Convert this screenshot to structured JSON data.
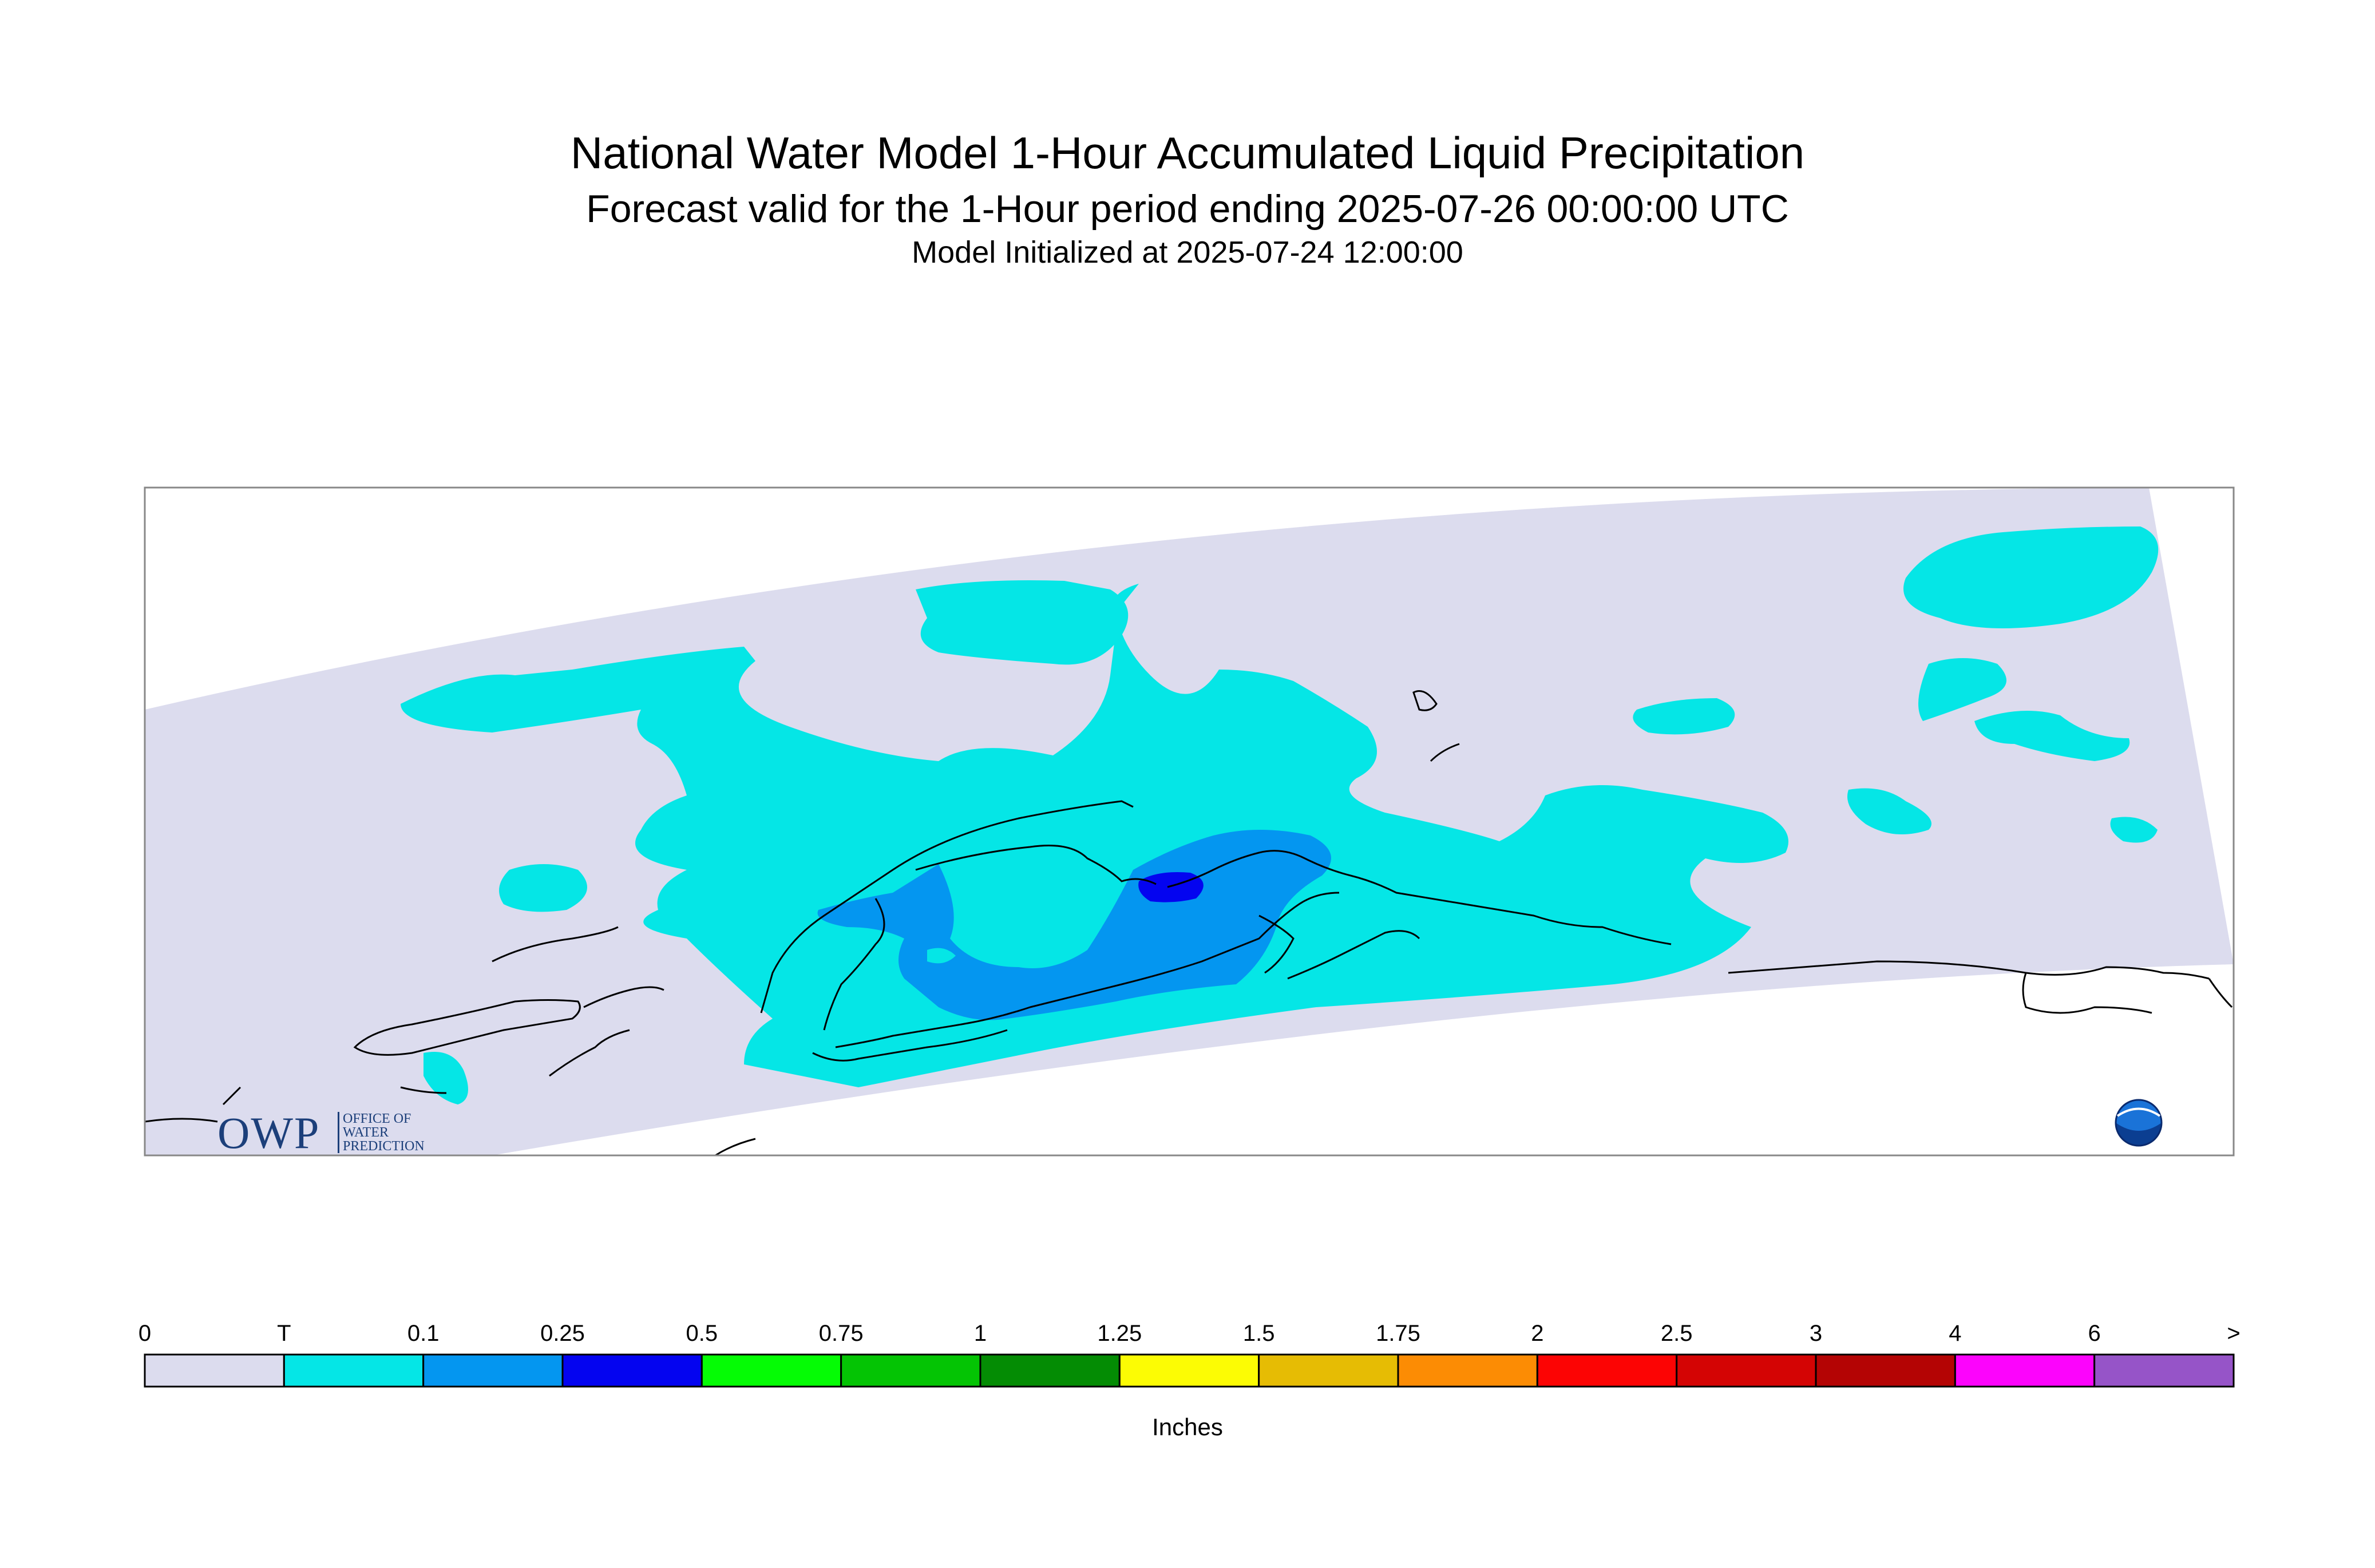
{
  "header": {
    "title": "National Water Model 1-Hour Accumulated Liquid Precipitation",
    "subtitle": "Forecast valid for the 1-Hour period ending 2025-07-26 00:00:00 UTC",
    "init": "Model Initialized at 2025-07-24 12:00:00"
  },
  "legend": {
    "units": "Inches",
    "labels": [
      "0",
      "T",
      "0.1",
      "0.25",
      "0.5",
      "0.75",
      "1",
      "1.25",
      "1.5",
      "1.75",
      "2",
      "2.5",
      "3",
      "4",
      "6",
      ">"
    ],
    "colors": [
      "#dcdcee",
      "#05e6e6",
      "#0496f0",
      "#0404f0",
      "#05fc05",
      "#04c404",
      "#048c04",
      "#fcfc04",
      "#e6bc04",
      "#fc8c04",
      "#fc0404",
      "#d40404",
      "#b40404",
      "#fc04fc",
      "#9654c8"
    ]
  },
  "map": {
    "region": "Alaska",
    "palette": {
      "domain": "#dcdcee",
      "trace": "#05e6e6",
      "light": "#0496f0",
      "medium": "#0404f0",
      "coast": "#000000"
    }
  },
  "logos": {
    "owp": "OWP",
    "owp_lines": [
      "OFFICE OF",
      "WATER",
      "PREDICTION"
    ],
    "noaa": "NOAA"
  }
}
